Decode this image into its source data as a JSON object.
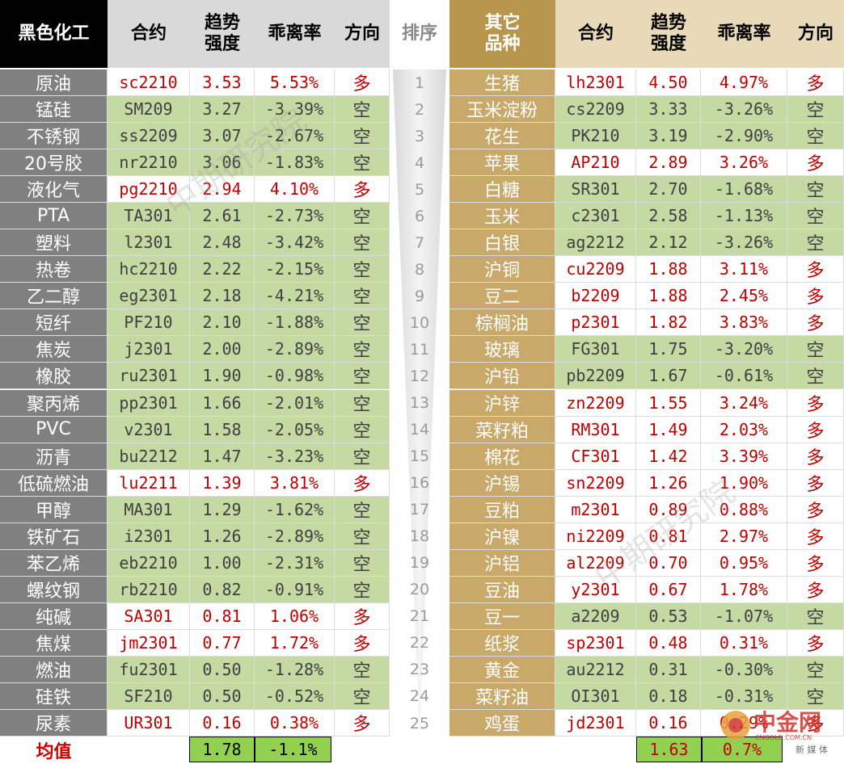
{
  "header": {
    "left_group": "黑色化工",
    "contract": "合约",
    "trend": "趋势\n强度",
    "deviation": "乖离率",
    "direction": "方向",
    "rank": "排序",
    "right_group": "其它\n品种"
  },
  "left_rows": [
    {
      "name": "原油",
      "contract": "sc2210",
      "trend": "3.53",
      "deviation": "5.53%",
      "direction": "多"
    },
    {
      "name": "锰硅",
      "contract": "SM209",
      "trend": "3.27",
      "deviation": "-3.39%",
      "direction": "空"
    },
    {
      "name": "不锈钢",
      "contract": "ss2209",
      "trend": "3.07",
      "deviation": "-2.67%",
      "direction": "空"
    },
    {
      "name": "20号胶",
      "contract": "nr2210",
      "trend": "3.06",
      "deviation": "-1.83%",
      "direction": "空"
    },
    {
      "name": "液化气",
      "contract": "pg2210",
      "trend": "2.94",
      "deviation": "4.10%",
      "direction": "多"
    },
    {
      "name": "PTA",
      "contract": "TA301",
      "trend": "2.61",
      "deviation": "-2.73%",
      "direction": "空"
    },
    {
      "name": "塑料",
      "contract": "l2301",
      "trend": "2.48",
      "deviation": "-3.42%",
      "direction": "空"
    },
    {
      "name": "热卷",
      "contract": "hc2210",
      "trend": "2.22",
      "deviation": "-2.15%",
      "direction": "空"
    },
    {
      "name": "乙二醇",
      "contract": "eg2301",
      "trend": "2.18",
      "deviation": "-4.21%",
      "direction": "空"
    },
    {
      "name": "短纤",
      "contract": "PF210",
      "trend": "2.10",
      "deviation": "-1.88%",
      "direction": "空"
    },
    {
      "name": "焦炭",
      "contract": "j2301",
      "trend": "2.00",
      "deviation": "-2.89%",
      "direction": "空"
    },
    {
      "name": "橡胶",
      "contract": "ru2301",
      "trend": "1.90",
      "deviation": "-0.98%",
      "direction": "空"
    },
    {
      "name": "聚丙烯",
      "contract": "pp2301",
      "trend": "1.66",
      "deviation": "-2.01%",
      "direction": "空"
    },
    {
      "name": "PVC",
      "contract": "v2301",
      "trend": "1.58",
      "deviation": "-2.05%",
      "direction": "空"
    },
    {
      "name": "沥青",
      "contract": "bu2212",
      "trend": "1.47",
      "deviation": "-3.23%",
      "direction": "空"
    },
    {
      "name": "低硫燃油",
      "contract": "lu2211",
      "trend": "1.39",
      "deviation": "3.81%",
      "direction": "多"
    },
    {
      "name": "甲醇",
      "contract": "MA301",
      "trend": "1.29",
      "deviation": "-1.62%",
      "direction": "空"
    },
    {
      "name": "铁矿石",
      "contract": "i2301",
      "trend": "1.26",
      "deviation": "-2.89%",
      "direction": "空"
    },
    {
      "name": "苯乙烯",
      "contract": "eb2210",
      "trend": "1.00",
      "deviation": "-2.31%",
      "direction": "空"
    },
    {
      "name": "螺纹钢",
      "contract": "rb2210",
      "trend": "0.82",
      "deviation": "-0.91%",
      "direction": "空"
    },
    {
      "name": "纯碱",
      "contract": "SA301",
      "trend": "0.81",
      "deviation": "1.06%",
      "direction": "多"
    },
    {
      "name": "焦煤",
      "contract": "jm2301",
      "trend": "0.77",
      "deviation": "1.72%",
      "direction": "多"
    },
    {
      "name": "燃油",
      "contract": "fu2301",
      "trend": "0.50",
      "deviation": "-1.28%",
      "direction": "空"
    },
    {
      "name": "硅铁",
      "contract": "SF210",
      "trend": "0.50",
      "deviation": "-0.52%",
      "direction": "空"
    },
    {
      "name": "尿素",
      "contract": "UR301",
      "trend": "0.16",
      "deviation": "0.38%",
      "direction": "多"
    }
  ],
  "ranks": [
    "1",
    "2",
    "3",
    "4",
    "5",
    "6",
    "7",
    "8",
    "9",
    "10",
    "11",
    "12",
    "13",
    "14",
    "15",
    "16",
    "17",
    "18",
    "19",
    "20",
    "21",
    "22",
    "23",
    "24",
    "25"
  ],
  "right_rows": [
    {
      "name": "生猪",
      "contract": "lh2301",
      "trend": "4.50",
      "deviation": "4.97%",
      "direction": "多"
    },
    {
      "name": "玉米淀粉",
      "contract": "cs2209",
      "trend": "3.33",
      "deviation": "-3.26%",
      "direction": "空"
    },
    {
      "name": "花生",
      "contract": "PK210",
      "trend": "3.19",
      "deviation": "-2.90%",
      "direction": "空"
    },
    {
      "name": "苹果",
      "contract": "AP210",
      "trend": "2.89",
      "deviation": "3.26%",
      "direction": "多"
    },
    {
      "name": "白糖",
      "contract": "SR301",
      "trend": "2.70",
      "deviation": "-1.68%",
      "direction": "空"
    },
    {
      "name": "玉米",
      "contract": "c2301",
      "trend": "2.58",
      "deviation": "-1.13%",
      "direction": "空"
    },
    {
      "name": "白银",
      "contract": "ag2212",
      "trend": "2.12",
      "deviation": "-3.26%",
      "direction": "空"
    },
    {
      "name": "沪铜",
      "contract": "cu2209",
      "trend": "1.88",
      "deviation": "3.11%",
      "direction": "多"
    },
    {
      "name": "豆二",
      "contract": "b2209",
      "trend": "1.88",
      "deviation": "2.45%",
      "direction": "多"
    },
    {
      "name": "棕榈油",
      "contract": "p2301",
      "trend": "1.82",
      "deviation": "3.83%",
      "direction": "多"
    },
    {
      "name": "玻璃",
      "contract": "FG301",
      "trend": "1.75",
      "deviation": "-3.20%",
      "direction": "空"
    },
    {
      "name": "沪铅",
      "contract": "pb2209",
      "trend": "1.67",
      "deviation": "-0.61%",
      "direction": "空"
    },
    {
      "name": "沪锌",
      "contract": "zn2209",
      "trend": "1.55",
      "deviation": "3.24%",
      "direction": "多"
    },
    {
      "name": "菜籽粕",
      "contract": "RM301",
      "trend": "1.49",
      "deviation": "2.03%",
      "direction": "多"
    },
    {
      "name": "棉花",
      "contract": "CF301",
      "trend": "1.42",
      "deviation": "3.39%",
      "direction": "多"
    },
    {
      "name": "沪锡",
      "contract": "sn2209",
      "trend": "1.26",
      "deviation": "1.90%",
      "direction": "多"
    },
    {
      "name": "豆粕",
      "contract": "m2301",
      "trend": "0.89",
      "deviation": "0.88%",
      "direction": "多"
    },
    {
      "name": "沪镍",
      "contract": "ni2209",
      "trend": "0.81",
      "deviation": "2.97%",
      "direction": "多"
    },
    {
      "name": "沪铝",
      "contract": "al2209",
      "trend": "0.70",
      "deviation": "0.95%",
      "direction": "多"
    },
    {
      "name": "豆油",
      "contract": "y2301",
      "trend": "0.67",
      "deviation": "1.78%",
      "direction": "多"
    },
    {
      "name": "豆一",
      "contract": "a2209",
      "trend": "0.53",
      "deviation": "-1.07%",
      "direction": "空"
    },
    {
      "name": "纸浆",
      "contract": "sp2301",
      "trend": "0.48",
      "deviation": "0.31%",
      "direction": "多"
    },
    {
      "name": "黄金",
      "contract": "au2212",
      "trend": "0.31",
      "deviation": "-0.30%",
      "direction": "空"
    },
    {
      "name": "菜籽油",
      "contract": "OI301",
      "trend": "0.18",
      "deviation": "-0.31%",
      "direction": "空"
    },
    {
      "name": "鸡蛋",
      "contract": "jd2301",
      "trend": "0.16",
      "deviation": "0.29%",
      "direction": "多"
    }
  ],
  "average": {
    "label": "均值",
    "left_trend": "1.78",
    "left_deviation": "-1.1%",
    "right_trend": "1.63",
    "right_deviation": "0.7%"
  },
  "watermark": "中期研究院",
  "logo": {
    "brand": "中金网",
    "domain": "CNGOLD.COM.CN",
    "tagline": "新 媒 体"
  },
  "colors": {
    "long_bg": "#ffffff",
    "short_bg": "#c5d9a3",
    "long_text": "#c00000",
    "short_text": "#404040",
    "left_name_bg": "#808080",
    "right_name_bg": "#c8a96a",
    "avg_box": "#92d050"
  }
}
